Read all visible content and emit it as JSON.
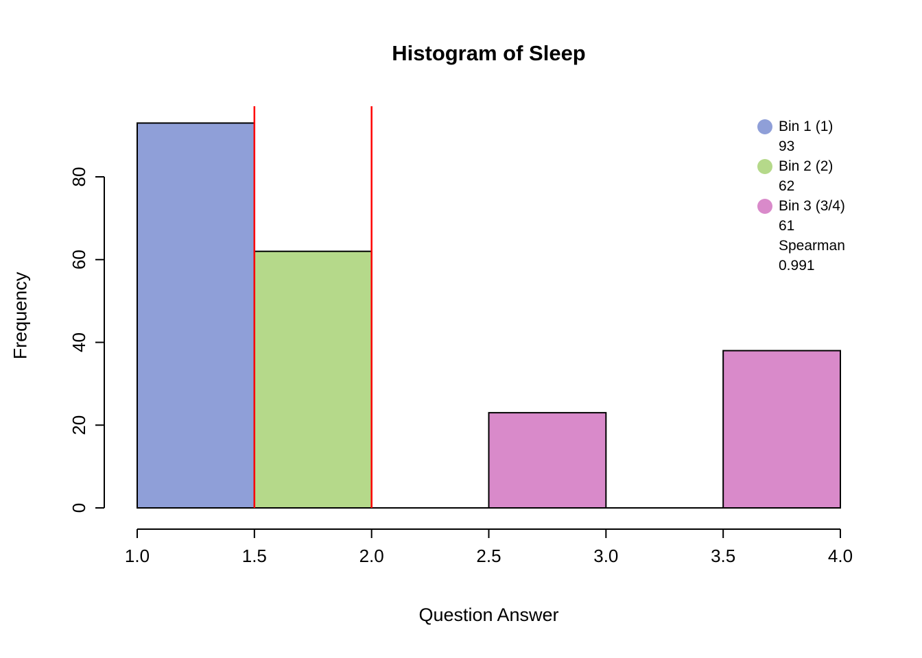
{
  "chart_data": {
    "type": "bar",
    "title": "Histogram of Sleep",
    "xlabel": "Question Answer",
    "ylabel": "Frequency",
    "xlim": [
      1.0,
      4.0
    ],
    "ylim": [
      0,
      97
    ],
    "x_ticks": [
      "1.0",
      "1.5",
      "2.0",
      "2.5",
      "3.0",
      "3.5",
      "4.0"
    ],
    "y_ticks": [
      "0",
      "20",
      "40",
      "60",
      "80"
    ],
    "grid": "off",
    "legend_position": "top-right",
    "bars": [
      {
        "x0": 1.0,
        "x1": 1.5,
        "value": 93,
        "color": "#8F9FD8",
        "bin": "Bin 1 (1)"
      },
      {
        "x0": 1.5,
        "x1": 2.0,
        "value": 62,
        "color": "#B5D98A",
        "bin": "Bin 2 (2)"
      },
      {
        "x0": 2.5,
        "x1": 3.0,
        "value": 23,
        "color": "#D98ACA",
        "bin": "Bin 3 (3/4)"
      },
      {
        "x0": 3.5,
        "x1": 4.0,
        "value": 38,
        "color": "#D98ACA",
        "bin": "Bin 3 (3/4)"
      }
    ],
    "vlines": [
      {
        "x": 1.5,
        "color": "#FF0000"
      },
      {
        "x": 2.0,
        "color": "#FF0000"
      }
    ],
    "legend": [
      {
        "marker_color": "#8F9FD8",
        "label": "Bin 1 (1)",
        "value": "93"
      },
      {
        "marker_color": "#B5D98A",
        "label": "Bin 2 (2)",
        "value": "62"
      },
      {
        "marker_color": "#D98ACA",
        "label": "Bin 3 (3/4)",
        "value": "61"
      }
    ],
    "annotations": [
      {
        "label": "Spearman",
        "value": "0.991"
      }
    ]
  }
}
